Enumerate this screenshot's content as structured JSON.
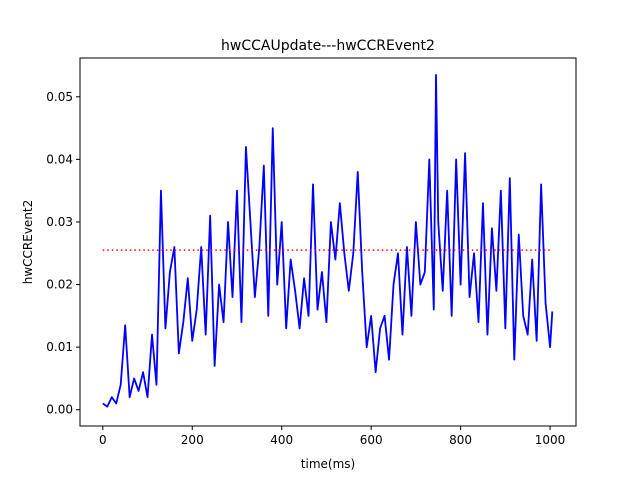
{
  "chart_data": {
    "type": "line",
    "title": "hwCCAUpdate---hwCCREvent2",
    "x_label": "time(ms)",
    "y_label": "hwCCREvent2",
    "x": [
      0,
      10,
      20,
      30,
      40,
      50,
      60,
      70,
      80,
      90,
      100,
      110,
      120,
      130,
      140,
      150,
      160,
      170,
      180,
      190,
      200,
      210,
      220,
      230,
      240,
      250,
      260,
      270,
      280,
      290,
      300,
      310,
      320,
      330,
      340,
      350,
      360,
      370,
      380,
      390,
      400,
      410,
      420,
      430,
      440,
      450,
      460,
      470,
      480,
      490,
      500,
      510,
      520,
      530,
      540,
      550,
      560,
      570,
      580,
      590,
      600,
      610,
      620,
      630,
      640,
      650,
      660,
      670,
      680,
      690,
      700,
      710,
      720,
      730,
      740,
      745,
      750,
      760,
      770,
      780,
      790,
      800,
      810,
      820,
      830,
      840,
      850,
      860,
      870,
      880,
      890,
      900,
      910,
      920,
      930,
      940,
      950,
      960,
      970,
      980,
      990,
      1000,
      1005
    ],
    "series": [
      {
        "name": "hwCCREvent2",
        "color": "#0000ff",
        "values": [
          0.001,
          0.0005,
          0.002,
          0.001,
          0.004,
          0.0135,
          0.002,
          0.005,
          0.003,
          0.006,
          0.002,
          0.012,
          0.004,
          0.035,
          0.013,
          0.022,
          0.026,
          0.009,
          0.014,
          0.021,
          0.011,
          0.016,
          0.026,
          0.012,
          0.031,
          0.007,
          0.02,
          0.014,
          0.03,
          0.018,
          0.035,
          0.014,
          0.042,
          0.03,
          0.018,
          0.026,
          0.039,
          0.015,
          0.045,
          0.02,
          0.03,
          0.013,
          0.024,
          0.019,
          0.013,
          0.021,
          0.015,
          0.036,
          0.016,
          0.022,
          0.014,
          0.03,
          0.024,
          0.033,
          0.025,
          0.019,
          0.025,
          0.038,
          0.022,
          0.01,
          0.015,
          0.006,
          0.013,
          0.015,
          0.008,
          0.02,
          0.025,
          0.012,
          0.026,
          0.015,
          0.03,
          0.02,
          0.022,
          0.04,
          0.016,
          0.0535,
          0.03,
          0.019,
          0.035,
          0.015,
          0.04,
          0.02,
          0.041,
          0.018,
          0.025,
          0.014,
          0.033,
          0.012,
          0.029,
          0.019,
          0.035,
          0.013,
          0.037,
          0.008,
          0.028,
          0.015,
          0.012,
          0.024,
          0.011,
          0.036,
          0.017,
          0.01,
          0.0157
        ]
      }
    ],
    "reference_line": {
      "value": 0.0255,
      "x": [
        0,
        1000
      ],
      "color": "#ff0000"
    },
    "xlim": [
      -51,
      1058
    ],
    "ylim": [
      -0.0026,
      0.0562
    ],
    "xticks": [
      0,
      200,
      400,
      600,
      800,
      1000
    ],
    "yticks": [
      {
        "value": 0,
        "label": "0.00"
      },
      {
        "value": 0.01,
        "label": "0.01"
      },
      {
        "value": 0.02,
        "label": "0.02"
      },
      {
        "value": 0.03,
        "label": "0.03"
      },
      {
        "value": 0.04,
        "label": "0.04"
      },
      {
        "value": 0.05,
        "label": "0.05"
      }
    ]
  }
}
